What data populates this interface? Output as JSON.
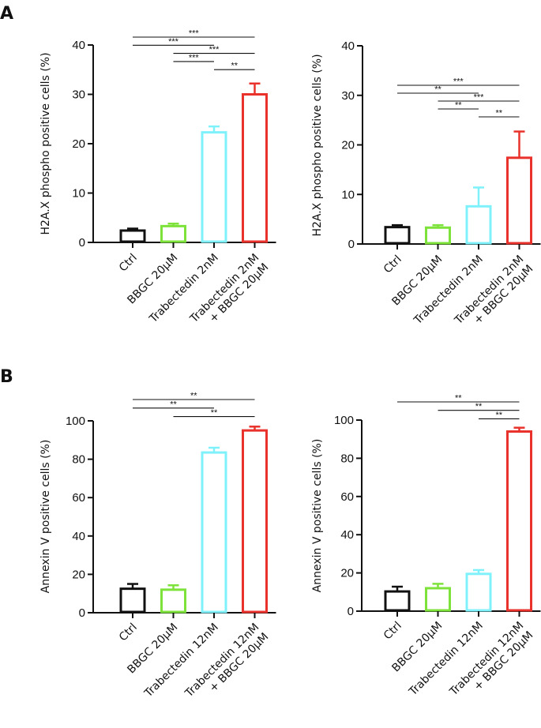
{
  "panels": [
    {
      "letter": "A"
    },
    {
      "letter": "B"
    }
  ],
  "chart_data": [
    {
      "type": "bar",
      "panel": "A",
      "ylabel": "H2A.X phospho positive cells (%)",
      "ylim": [
        0,
        40
      ],
      "yticks": [
        0,
        10,
        20,
        30,
        40
      ],
      "categories": [
        [
          "Ctrl"
        ],
        [
          "BBGC 20μM"
        ],
        [
          "Trabectedin 2nM"
        ],
        [
          "Trabectedin 2nM",
          "+ BBGC 20μM"
        ]
      ],
      "values": [
        2.4,
        3.3,
        22.3,
        30.0
      ],
      "errors": [
        0.4,
        0.5,
        1.2,
        2.2
      ],
      "colors": [
        "#111111",
        "#7de23a",
        "#7ff1fb",
        "#e8322b"
      ],
      "significance": [
        {
          "from": 0,
          "to": 3,
          "label": "***"
        },
        {
          "from": 0,
          "to": 2,
          "label": "***"
        },
        {
          "from": 1,
          "to": 3,
          "label": "***"
        },
        {
          "from": 1,
          "to": 2,
          "label": "***"
        },
        {
          "from": 2,
          "to": 3,
          "label": "**"
        }
      ]
    },
    {
      "type": "bar",
      "panel": "A",
      "ylabel": "H2A.X phospho positive cells (%)",
      "ylim": [
        0,
        40
      ],
      "yticks": [
        0,
        10,
        20,
        30,
        40
      ],
      "categories": [
        [
          "Ctrl"
        ],
        [
          "BBGC 20μM"
        ],
        [
          "Trabectedin 2nM"
        ],
        [
          "Trabectedin 2nM",
          "+ BBGC 20μM"
        ]
      ],
      "values": [
        3.4,
        3.3,
        7.6,
        17.4
      ],
      "errors": [
        0.4,
        0.5,
        3.8,
        5.3
      ],
      "colors": [
        "#111111",
        "#7de23a",
        "#7ff1fb",
        "#e8322b"
      ],
      "significance": [
        {
          "from": 0,
          "to": 3,
          "label": "***"
        },
        {
          "from": 0,
          "to": 2,
          "label": "**"
        },
        {
          "from": 1,
          "to": 3,
          "label": "***"
        },
        {
          "from": 1,
          "to": 2,
          "label": "**"
        },
        {
          "from": 2,
          "to": 3,
          "label": "**"
        }
      ]
    },
    {
      "type": "bar",
      "panel": "B",
      "ylabel": "Annexin V positive cells (%)",
      "ylim": [
        0,
        100
      ],
      "yticks": [
        0,
        20,
        40,
        60,
        80,
        100
      ],
      "categories": [
        [
          "Ctrl"
        ],
        [
          "BBGC 20μM"
        ],
        [
          "Trabectedin 12nM"
        ],
        [
          "Trabectedin 12nM",
          "+ BBGC 20μM"
        ]
      ],
      "values": [
        12.5,
        12.0,
        83.5,
        95.0
      ],
      "errors": [
        2.5,
        2.3,
        2.5,
        2.0
      ],
      "colors": [
        "#111111",
        "#7de23a",
        "#7ff1fb",
        "#e8322b"
      ],
      "significance": [
        {
          "from": 0,
          "to": 3,
          "label": "**"
        },
        {
          "from": 0,
          "to": 2,
          "label": "**"
        },
        {
          "from": 1,
          "to": 3,
          "label": "**"
        }
      ]
    },
    {
      "type": "bar",
      "panel": "B",
      "ylabel": "Annexin V positive cells (%)",
      "ylim": [
        0,
        100
      ],
      "yticks": [
        0,
        20,
        40,
        60,
        80,
        100
      ],
      "categories": [
        [
          "Ctrl"
        ],
        [
          "BBGC 20μM"
        ],
        [
          "Trabectedin 12nM"
        ],
        [
          "Trabectedin 12nM",
          "+ BBGC 20μM"
        ]
      ],
      "values": [
        10.3,
        12.0,
        19.5,
        94.0
      ],
      "errors": [
        2.5,
        2.3,
        2.0,
        2.0
      ],
      "colors": [
        "#111111",
        "#7de23a",
        "#7ff1fb",
        "#e8322b"
      ],
      "significance": [
        {
          "from": 0,
          "to": 3,
          "label": "**"
        },
        {
          "from": 1,
          "to": 3,
          "label": "**"
        },
        {
          "from": 2,
          "to": 3,
          "label": "**"
        }
      ]
    }
  ]
}
